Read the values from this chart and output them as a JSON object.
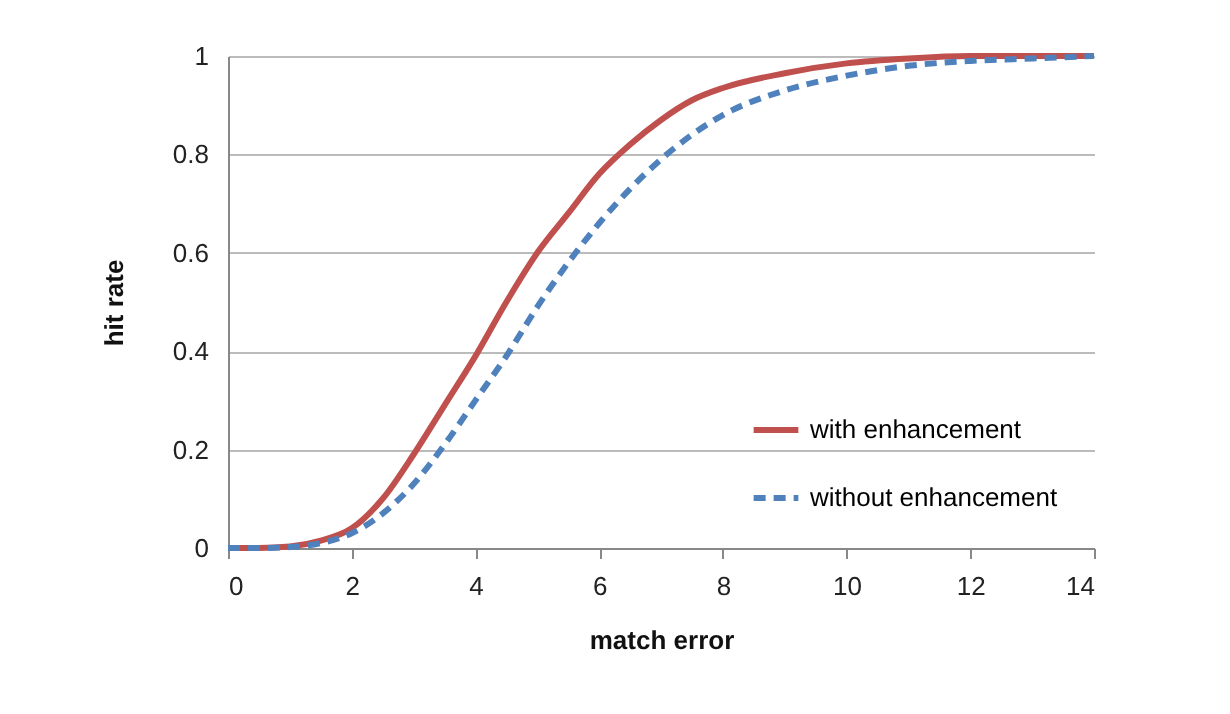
{
  "chart_data": {
    "type": "line",
    "xlabel": "match error",
    "ylabel": "hit rate",
    "x": [
      0,
      0.5,
      1,
      1.5,
      2,
      2.5,
      3,
      3.5,
      4,
      4.5,
      5,
      5.5,
      6,
      6.5,
      7,
      7.5,
      8,
      9,
      10,
      11,
      12,
      13,
      14
    ],
    "series": [
      {
        "name": "with enhancement",
        "color": "#c0504d",
        "line_style": "solid",
        "values": [
          0,
          0,
          0.003,
          0.015,
          0.04,
          0.1,
          0.19,
          0.29,
          0.39,
          0.5,
          0.6,
          0.68,
          0.76,
          0.82,
          0.87,
          0.91,
          0.935,
          0.965,
          0.985,
          0.995,
          1,
          1,
          1
        ]
      },
      {
        "name": "without enhancement",
        "color": "#4f81bd",
        "line_style": "dashed",
        "values": [
          0,
          0,
          0.002,
          0.01,
          0.03,
          0.07,
          0.13,
          0.21,
          0.3,
          0.39,
          0.49,
          0.58,
          0.66,
          0.73,
          0.79,
          0.84,
          0.88,
          0.93,
          0.96,
          0.98,
          0.99,
          0.995,
          1
        ]
      }
    ],
    "xlim": [
      0,
      14
    ],
    "xticks": [
      0,
      2,
      4,
      6,
      8,
      10,
      12,
      14
    ],
    "ylim": [
      0,
      1
    ],
    "yticks": [
      0,
      0.2,
      0.4,
      0.6,
      0.8,
      1
    ],
    "grid": "y",
    "legend": "bottom right",
    "marker": "none"
  }
}
